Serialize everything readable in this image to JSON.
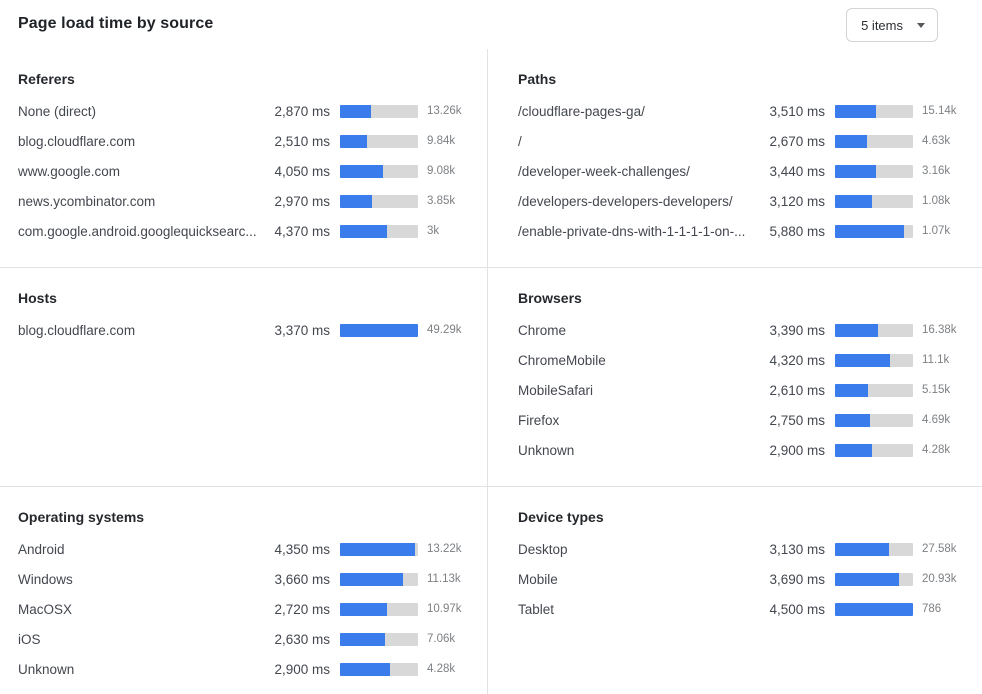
{
  "header": {
    "title": "Page load time by source",
    "items_dropdown": {
      "selected": "5 items"
    }
  },
  "colors": {
    "bar_fill": "#3B7CEC",
    "bar_track": "#D8D8D8",
    "divider": "#E2E2E5"
  },
  "chart_data": [
    {
      "type": "bar",
      "title": "Referers",
      "unit": "ms",
      "bar_axis_max_ms": 7300,
      "rows": [
        {
          "label": "None (direct)",
          "ms": 2870,
          "ms_display": "2,870 ms",
          "count_display": "13.26k"
        },
        {
          "label": "blog.cloudflare.com",
          "ms": 2510,
          "ms_display": "2,510 ms",
          "count_display": "9.84k"
        },
        {
          "label": "www.google.com",
          "ms": 4050,
          "ms_display": "4,050 ms",
          "count_display": "9.08k"
        },
        {
          "label": "news.ycombinator.com",
          "ms": 2970,
          "ms_display": "2,970 ms",
          "count_display": "3.85k"
        },
        {
          "label": "com.google.android.googlequicksearc...",
          "ms": 4370,
          "ms_display": "4,370 ms",
          "count_display": "3k"
        }
      ]
    },
    {
      "type": "bar",
      "title": "Paths",
      "unit": "ms",
      "bar_axis_max_ms": 6600,
      "rows": [
        {
          "label": "/cloudflare-pages-ga/",
          "ms": 3510,
          "ms_display": "3,510 ms",
          "count_display": "15.14k"
        },
        {
          "label": "/",
          "ms": 2670,
          "ms_display": "2,670 ms",
          "count_display": "4.63k"
        },
        {
          "label": "/developer-week-challenges/",
          "ms": 3440,
          "ms_display": "3,440 ms",
          "count_display": "3.16k"
        },
        {
          "label": "/developers-developers-developers/",
          "ms": 3120,
          "ms_display": "3,120 ms",
          "count_display": "1.08k"
        },
        {
          "label": "/enable-private-dns-with-1-1-1-1-on-...",
          "ms": 5880,
          "ms_display": "5,880 ms",
          "count_display": "1.07k"
        }
      ]
    },
    {
      "type": "bar",
      "title": "Hosts",
      "unit": "ms",
      "bar_axis_max_ms": 3370,
      "rows": [
        {
          "label": "blog.cloudflare.com",
          "ms": 3370,
          "ms_display": "3,370 ms",
          "count_display": "49.29k"
        }
      ]
    },
    {
      "type": "bar",
      "title": "Browsers",
      "unit": "ms",
      "bar_axis_max_ms": 6100,
      "rows": [
        {
          "label": "Chrome",
          "ms": 3390,
          "ms_display": "3,390 ms",
          "count_display": "16.38k"
        },
        {
          "label": "ChromeMobile",
          "ms": 4320,
          "ms_display": "4,320 ms",
          "count_display": "11.1k"
        },
        {
          "label": "MobileSafari",
          "ms": 2610,
          "ms_display": "2,610 ms",
          "count_display": "5.15k"
        },
        {
          "label": "Firefox",
          "ms": 2750,
          "ms_display": "2,750 ms",
          "count_display": "4.69k"
        },
        {
          "label": "Unknown",
          "ms": 2900,
          "ms_display": "2,900 ms",
          "count_display": "4.28k"
        }
      ]
    },
    {
      "type": "bar",
      "title": "Operating systems",
      "unit": "ms",
      "bar_axis_max_ms": 4550,
      "rows": [
        {
          "label": "Android",
          "ms": 4350,
          "ms_display": "4,350 ms",
          "count_display": "13.22k"
        },
        {
          "label": "Windows",
          "ms": 3660,
          "ms_display": "3,660 ms",
          "count_display": "11.13k"
        },
        {
          "label": "MacOSX",
          "ms": 2720,
          "ms_display": "2,720 ms",
          "count_display": "10.97k"
        },
        {
          "label": "iOS",
          "ms": 2630,
          "ms_display": "2,630 ms",
          "count_display": "7.06k"
        },
        {
          "label": "Unknown",
          "ms": 2900,
          "ms_display": "2,900 ms",
          "count_display": "4.28k"
        }
      ]
    },
    {
      "type": "bar",
      "title": "Device types",
      "unit": "ms",
      "bar_axis_max_ms": 4500,
      "rows": [
        {
          "label": "Desktop",
          "ms": 3130,
          "ms_display": "3,130 ms",
          "count_display": "27.58k"
        },
        {
          "label": "Mobile",
          "ms": 3690,
          "ms_display": "3,690 ms",
          "count_display": "20.93k"
        },
        {
          "label": "Tablet",
          "ms": 4500,
          "ms_display": "4,500 ms",
          "count_display": "786"
        }
      ]
    }
  ]
}
